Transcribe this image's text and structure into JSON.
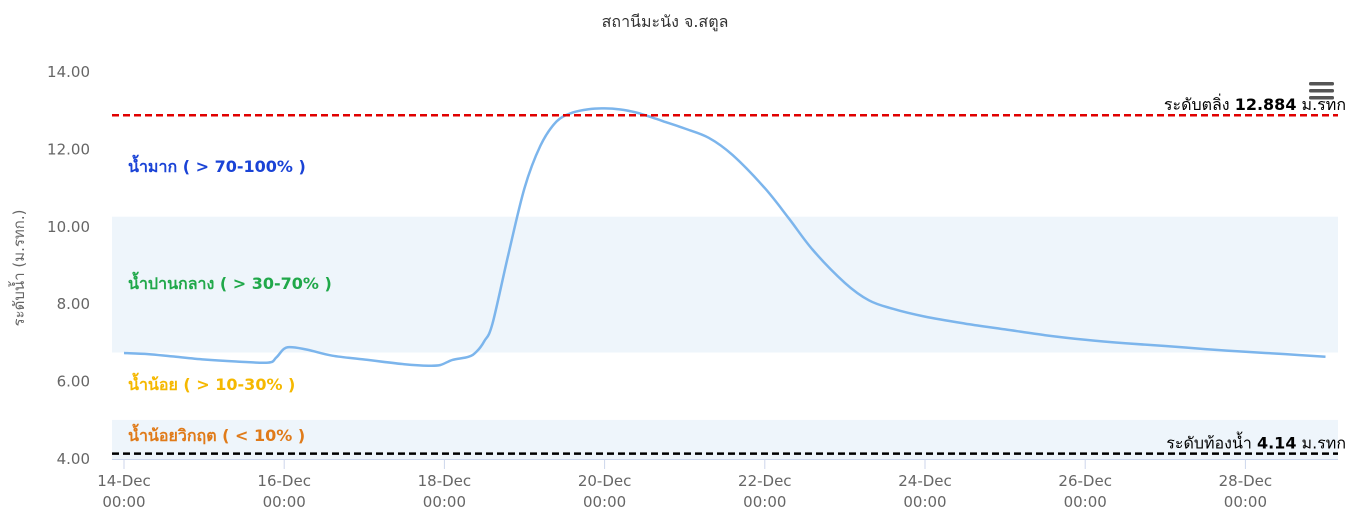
{
  "chart_data": {
    "type": "line",
    "title": "สถานีมะนัง จ.สตูล",
    "ylabel": "ระดับน้ำ (ม.รทก.)",
    "xlabel": "",
    "ylim": [
      4,
      14
    ],
    "y_ticks": [
      "4.00",
      "6.00",
      "8.00",
      "10.00",
      "12.00",
      "14.00"
    ],
    "x_ticks": [
      {
        "day": 14,
        "line1": "14-Dec",
        "line2": "00:00"
      },
      {
        "day": 16,
        "line1": "16-Dec",
        "line2": "00:00"
      },
      {
        "day": 18,
        "line1": "18-Dec",
        "line2": "00:00"
      },
      {
        "day": 20,
        "line1": "20-Dec",
        "line2": "00:00"
      },
      {
        "day": 22,
        "line1": "22-Dec",
        "line2": "00:00"
      },
      {
        "day": 24,
        "line1": "24-Dec",
        "line2": "00:00"
      },
      {
        "day": 26,
        "line1": "26-Dec",
        "line2": "00:00"
      },
      {
        "day": 28,
        "line1": "28-Dec",
        "line2": "00:00"
      }
    ],
    "x_unit": "Dec day",
    "series": [
      {
        "color": "#7cb5ec",
        "x": [
          14.0,
          14.3,
          14.6,
          15.0,
          15.4,
          15.8,
          15.9,
          16.0,
          16.1,
          16.3,
          16.6,
          17.0,
          17.5,
          17.8,
          17.95,
          18.1,
          18.3,
          18.4,
          18.5,
          18.6,
          18.8,
          19.0,
          19.2,
          19.4,
          19.6,
          19.8,
          20.0,
          20.2,
          20.4,
          20.6,
          20.8,
          21.0,
          21.3,
          21.6,
          22.0,
          22.3,
          22.6,
          23.0,
          23.3,
          23.6,
          24.0,
          24.5,
          25.0,
          25.5,
          26.0,
          26.5,
          27.0,
          27.5,
          28.0,
          28.5,
          29.0
        ],
        "y": [
          6.74,
          6.71,
          6.65,
          6.57,
          6.52,
          6.49,
          6.62,
          6.85,
          6.89,
          6.82,
          6.67,
          6.57,
          6.45,
          6.41,
          6.43,
          6.56,
          6.64,
          6.77,
          7.05,
          7.5,
          9.3,
          11.0,
          12.1,
          12.72,
          12.95,
          13.04,
          13.06,
          13.03,
          12.95,
          12.82,
          12.68,
          12.54,
          12.3,
          11.85,
          11.0,
          10.22,
          9.4,
          8.55,
          8.1,
          7.88,
          7.68,
          7.5,
          7.35,
          7.2,
          7.08,
          6.99,
          6.92,
          6.84,
          6.77,
          6.71,
          6.64
        ]
      }
    ],
    "bands": [
      {
        "label": "น้ำมาก ( > 70-100% )",
        "color": "#1a43d6",
        "fill": "",
        "from": 10.26,
        "to": 14.0
      },
      {
        "label": "น้ำปานกลาง ( > 30-70% )",
        "color": "#20a84a",
        "fill": "#eef5fb",
        "from": 6.75,
        "to": 10.26
      },
      {
        "label": "น้ำน้อย ( > 10-30% )",
        "color": "#f5b800",
        "fill": "",
        "from": 5.01,
        "to": 6.75
      },
      {
        "label": "น้ำน้อยวิกฤต ( < 10% )",
        "color": "#e07b1a",
        "fill": "#eef5fb",
        "from": 4.0,
        "to": 5.01
      }
    ],
    "reference_lines": [
      {
        "label": "ระดับตลิ่ง",
        "value": 12.884,
        "value_text": "12.884",
        "unit": "ม.รทก",
        "color": "#e00000"
      },
      {
        "label": "ระดับท้องน้ำ",
        "value": 4.14,
        "value_text": "4.14",
        "unit": "ม.รทก",
        "color": "#000000"
      }
    ],
    "grid": false,
    "legend": "none"
  },
  "menu": {
    "icon": "hamburger-menu-icon"
  }
}
